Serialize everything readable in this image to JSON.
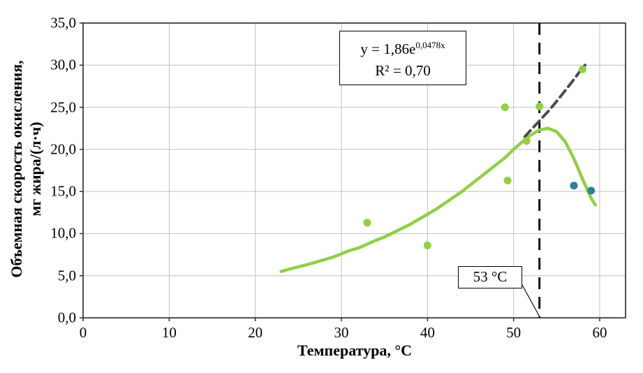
{
  "chart_data": {
    "type": "scatter",
    "title": "",
    "xlabel": "Температура, °С",
    "ylabel_line1": "Объемная скорость окисления,",
    "ylabel_line2": "мг жира/(л·ч)",
    "xlim": [
      0,
      63
    ],
    "ylim": [
      0,
      35
    ],
    "x_ticks": [
      0,
      10,
      20,
      30,
      40,
      50,
      60
    ],
    "x_tick_labels": [
      "0",
      "10",
      "20",
      "30",
      "40",
      "50",
      "60"
    ],
    "y_ticks": [
      0,
      5,
      10,
      15,
      20,
      25,
      30,
      35
    ],
    "y_tick_labels": [
      "0,0",
      "5,0",
      "10,0",
      "15,0",
      "20,0",
      "25,0",
      "30,0",
      "35,0"
    ],
    "grid": true,
    "legend": "none",
    "colors": {
      "green": "#90cf47",
      "teal": "#2b8195",
      "trend": "#4d4d4d",
      "grid": "#bfbfbf",
      "axis": "#262626",
      "vline": "#111111"
    },
    "series": [
      {
        "name": "polynomial-fit-curve",
        "type": "line",
        "color": "#90cf47",
        "width": 4.5,
        "points": [
          [
            23,
            5.5
          ],
          [
            24,
            5.8
          ],
          [
            26,
            6.3
          ],
          [
            28,
            6.9
          ],
          [
            29,
            7.2
          ],
          [
            31,
            8.0
          ],
          [
            32,
            8.3
          ],
          [
            34,
            9.2
          ],
          [
            35,
            9.6
          ],
          [
            37,
            10.6
          ],
          [
            38,
            11.1
          ],
          [
            40,
            12.3
          ],
          [
            41,
            12.9
          ],
          [
            43,
            14.3
          ],
          [
            44,
            15.0
          ],
          [
            46,
            16.6
          ],
          [
            47,
            17.4
          ],
          [
            49,
            19.0
          ],
          [
            50,
            20.0
          ],
          [
            51,
            20.9
          ],
          [
            52,
            21.7
          ],
          [
            53,
            22.3
          ],
          [
            54,
            22.5
          ],
          [
            55,
            22.1
          ],
          [
            56,
            20.9
          ],
          [
            57,
            18.9
          ],
          [
            58,
            16.5
          ],
          [
            59,
            14.2
          ],
          [
            59.5,
            13.4
          ]
        ]
      },
      {
        "name": "exponential-trendline",
        "type": "dashed-line",
        "color": "#4d4d4d",
        "width": 4,
        "dash": "12 7",
        "points": [
          [
            51.3,
            21.5
          ],
          [
            52,
            22.3
          ],
          [
            53,
            23.4
          ],
          [
            54,
            24.5
          ],
          [
            55,
            25.7
          ],
          [
            56,
            27.0
          ],
          [
            57,
            28.3
          ],
          [
            58,
            29.7
          ],
          [
            58.3,
            30.0
          ]
        ]
      },
      {
        "name": "experimental-points-green",
        "type": "scatter",
        "color": "#90cf47",
        "radius": 5.5,
        "points": [
          [
            33,
            11.3
          ],
          [
            40,
            8.6
          ],
          [
            49,
            25.0
          ],
          [
            49.3,
            16.3
          ],
          [
            51.5,
            21.0
          ],
          [
            53,
            25.1
          ],
          [
            58,
            29.5
          ]
        ]
      },
      {
        "name": "experimental-points-teal",
        "type": "scatter",
        "color": "#2b8195",
        "radius": 5.5,
        "points": [
          [
            57,
            15.7
          ],
          [
            59,
            15.1
          ]
        ]
      }
    ],
    "vline": {
      "x": 53,
      "label": "53 °С"
    },
    "annotation": {
      "equation_base": "y = 1,86e",
      "equation_exponent": "0,0478x",
      "r_squared": "R² = 0,70"
    }
  }
}
